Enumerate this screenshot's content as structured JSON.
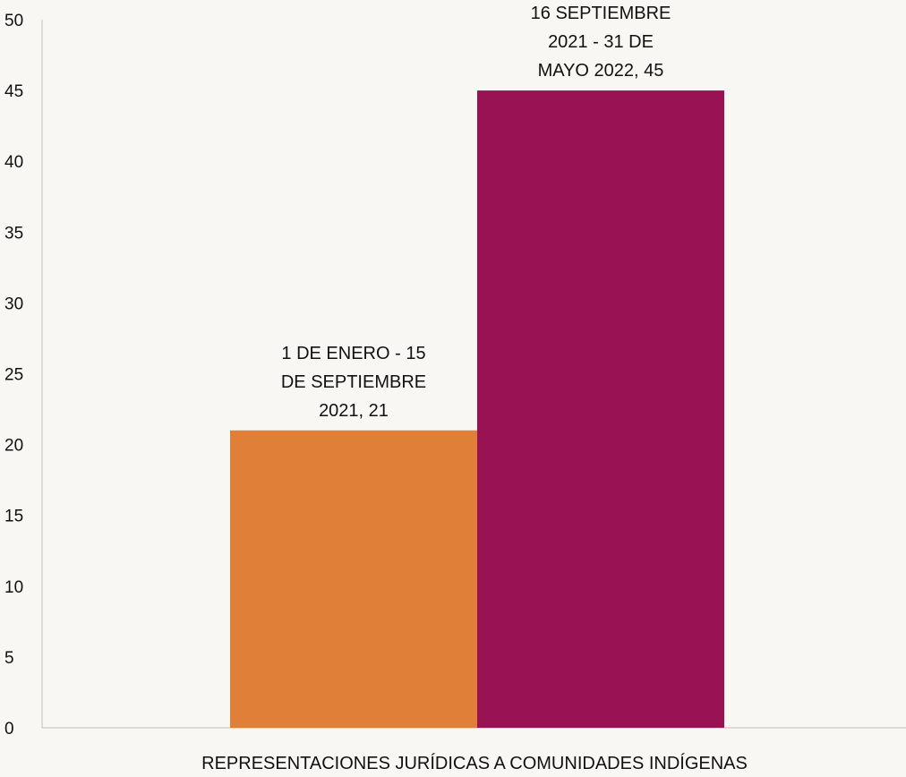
{
  "chart_data": {
    "type": "bar",
    "categories": [
      "REPRESENTACIONES JURÍDICAS A COMUNIDADES INDÍGENAS"
    ],
    "series": [
      {
        "name": "1 DE ENERO - 15 DE SEPTIEMBRE 2021",
        "values": [
          21
        ],
        "color": "#e07f38",
        "label_lines": [
          "1 DE ENERO - 15",
          "DE SEPTIEMBRE",
          "2021, 21"
        ]
      },
      {
        "name": "16 SEPTIEMBRE 2021 - 31 DE MAYO 2022",
        "values": [
          45
        ],
        "color": "#991253",
        "label_lines": [
          "16 SEPTIEMBRE",
          "2021 - 31 DE",
          "MAYO 2022, 45"
        ]
      }
    ],
    "y_ticks": [
      "0",
      "5",
      "10",
      "15",
      "20",
      "25",
      "30",
      "35",
      "40",
      "45",
      "50"
    ],
    "ylim": [
      0,
      50
    ],
    "grid": false,
    "legend": "none",
    "title": "",
    "xlabel": "",
    "ylabel": ""
  }
}
